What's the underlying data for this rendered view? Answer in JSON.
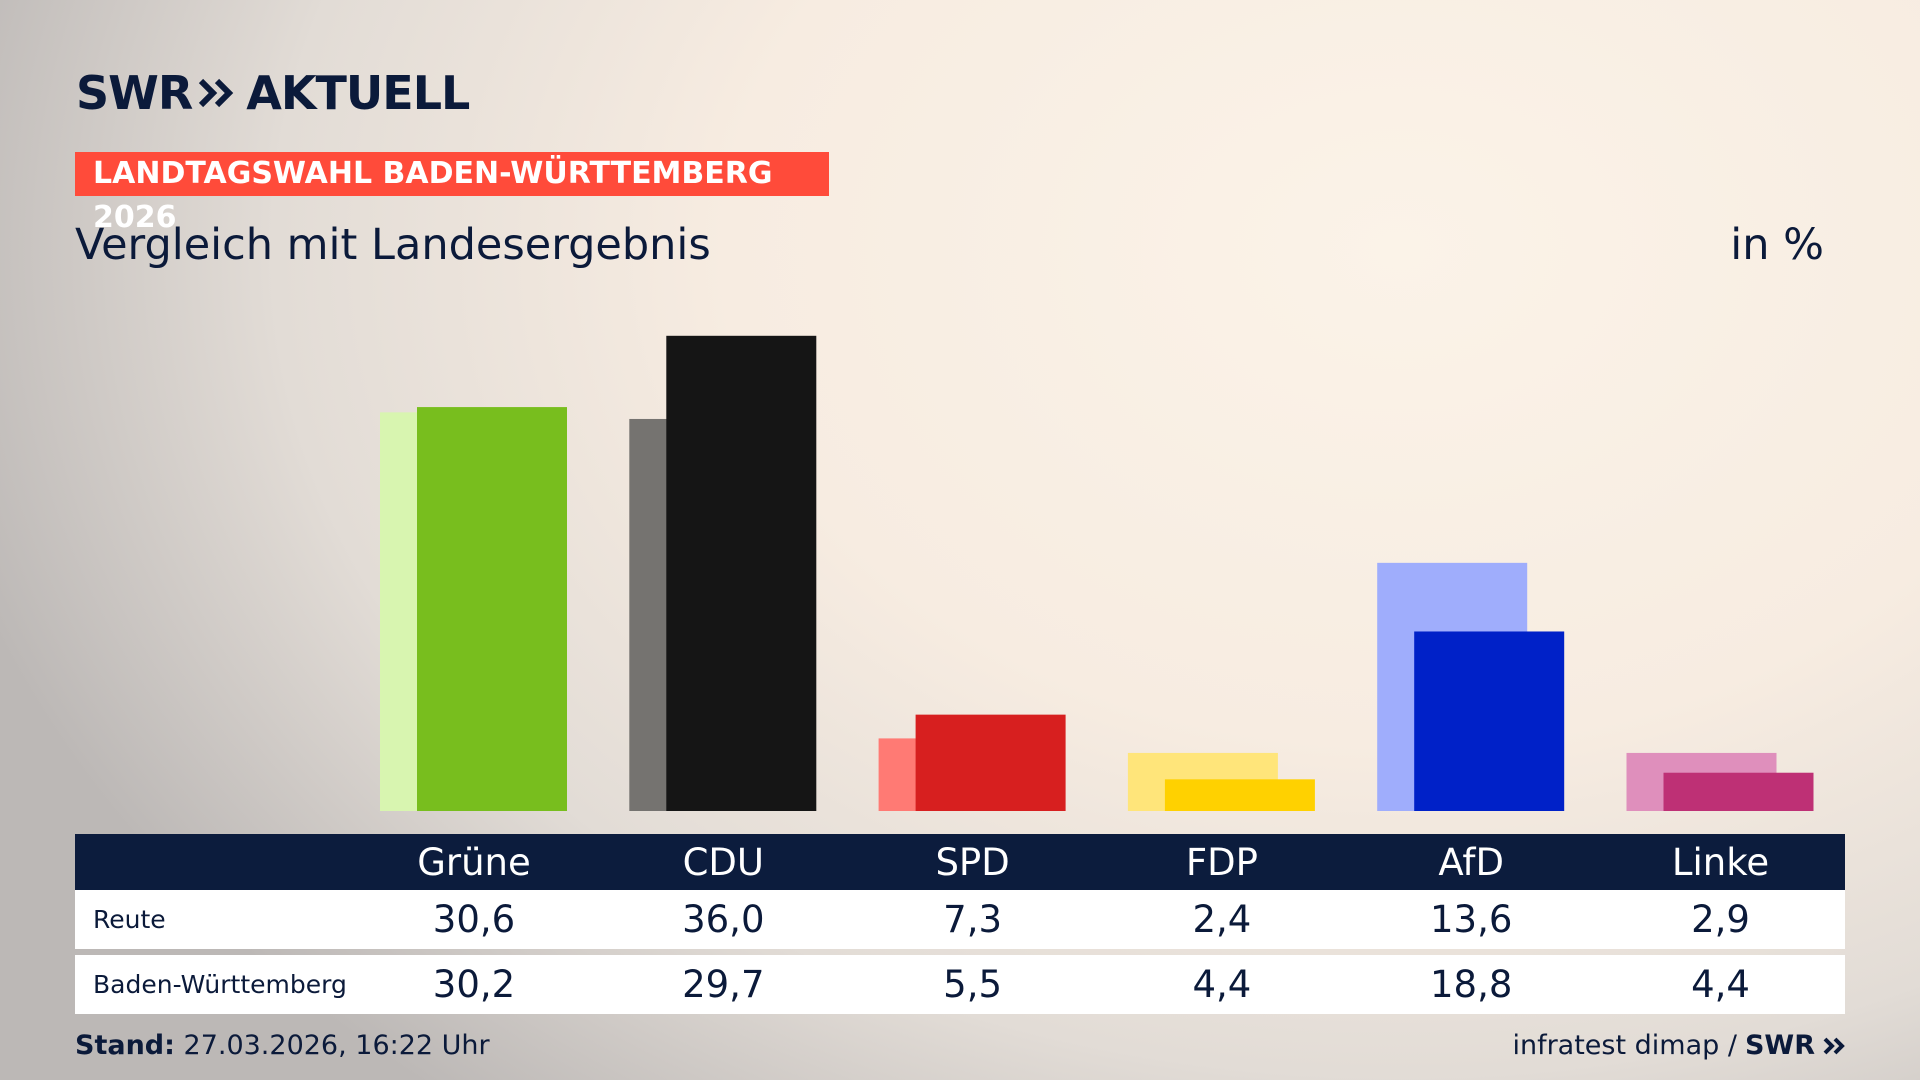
{
  "header": {
    "logo": "SWR",
    "product": "AKTUELL",
    "banner": "LANDTAGSWAHL BADEN-WÜRTTEMBERG 2026"
  },
  "chart_data": {
    "type": "bar",
    "title": "Vergleich mit Landesergebnis",
    "unit": "in %",
    "categories": [
      "Grüne",
      "CDU",
      "SPD",
      "FDP",
      "AfD",
      "Linke"
    ],
    "series": [
      {
        "name": "Reute",
        "colors": [
          "#78be1e",
          "#151515",
          "#d71f1f",
          "#ffd100",
          "#0021c8",
          "#be3075"
        ],
        "values": [
          30.6,
          36.0,
          7.3,
          2.4,
          13.6,
          2.9
        ],
        "value_labels": [
          "30,6",
          "36,0",
          "7,3",
          "2,4",
          "13,6",
          "2,9"
        ]
      },
      {
        "name": "Baden-Württemberg",
        "colors": [
          "#d8f5b0",
          "#757370",
          "#ff7a74",
          "#ffe57a",
          "#9fadfc",
          "#df8fbc"
        ],
        "values": [
          30.2,
          29.7,
          5.5,
          4.4,
          18.8,
          4.4
        ],
        "value_labels": [
          "30,2",
          "29,7",
          "5,5",
          "4,4",
          "18,8",
          "4,4"
        ]
      }
    ]
  },
  "footer": {
    "stand_label": "Stand:",
    "stand": "27.03.2026, 16:22 Uhr",
    "source": "infratest dimap /",
    "source_logo": "SWR"
  }
}
